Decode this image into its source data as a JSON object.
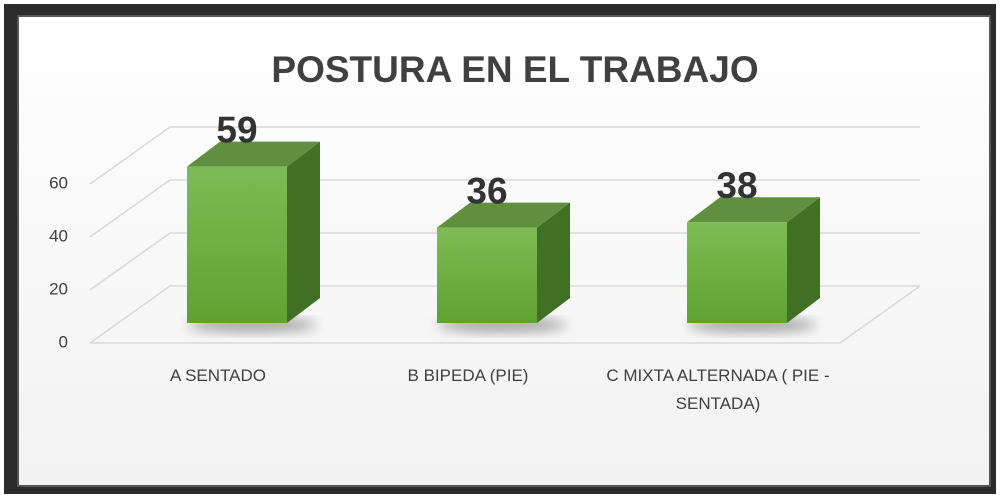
{
  "chart_data": {
    "type": "bar3d",
    "title": "POSTURA EN EL TRABAJO",
    "categories": [
      "A SENTADO",
      "B BIPEDA (PIE)",
      "C MIXTA ALTERNADA ( PIE - SENTADA)"
    ],
    "values": [
      59,
      36,
      38
    ],
    "color": "#6aaa3a",
    "ylim": [
      0,
      60
    ],
    "yticks": [
      0,
      20,
      40,
      60
    ],
    "grid": true
  }
}
